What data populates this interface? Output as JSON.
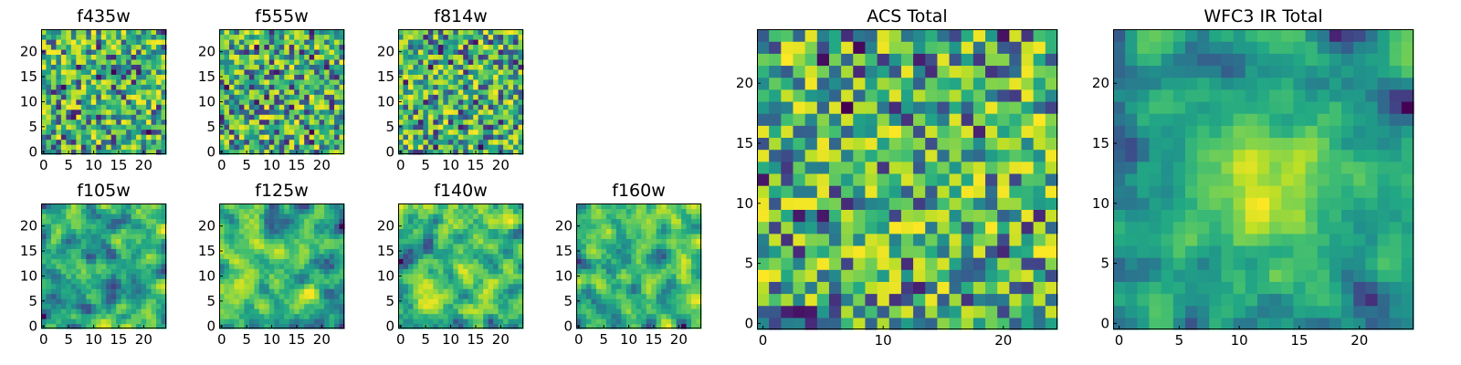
{
  "figure_title": "",
  "chart_data": [
    {
      "type": "heatmap",
      "title": "f435w",
      "nx": 25,
      "ny": 25,
      "seed": 11,
      "smooth": 0,
      "kind": "noise",
      "xlim": [
        0,
        24
      ],
      "ylim": [
        0,
        24
      ],
      "xticks": [
        0,
        5,
        10,
        15,
        20
      ],
      "yticks": [
        0,
        5,
        10,
        15,
        20
      ],
      "colormap": "viridis"
    },
    {
      "type": "heatmap",
      "title": "f555w",
      "nx": 25,
      "ny": 25,
      "seed": 23,
      "smooth": 0,
      "kind": "noise",
      "xlim": [
        0,
        24
      ],
      "ylim": [
        0,
        24
      ],
      "xticks": [
        0,
        5,
        10,
        15,
        20
      ],
      "yticks": [
        0,
        5,
        10,
        15,
        20
      ],
      "colormap": "viridis"
    },
    {
      "type": "heatmap",
      "title": "f814w",
      "nx": 25,
      "ny": 25,
      "seed": 37,
      "smooth": 0,
      "kind": "noise",
      "xlim": [
        0,
        24
      ],
      "ylim": [
        0,
        24
      ],
      "xticks": [
        0,
        5,
        10,
        15,
        20
      ],
      "yticks": [
        0,
        5,
        10,
        15,
        20
      ],
      "colormap": "viridis"
    },
    {
      "type": "heatmap",
      "title": "f105w",
      "nx": 25,
      "ny": 25,
      "seed": 41,
      "smooth": 1,
      "kind": "smooth",
      "xlim": [
        0,
        24
      ],
      "ylim": [
        0,
        24
      ],
      "xticks": [
        0,
        5,
        10,
        15,
        20
      ],
      "yticks": [
        0,
        5,
        10,
        15,
        20
      ],
      "colormap": "viridis"
    },
    {
      "type": "heatmap",
      "title": "f125w",
      "nx": 25,
      "ny": 25,
      "seed": 53,
      "smooth": 1,
      "kind": "smooth",
      "xlim": [
        0,
        24
      ],
      "ylim": [
        0,
        24
      ],
      "xticks": [
        0,
        5,
        10,
        15,
        20
      ],
      "yticks": [
        0,
        5,
        10,
        15,
        20
      ],
      "colormap": "viridis"
    },
    {
      "type": "heatmap",
      "title": "f140w",
      "nx": 25,
      "ny": 25,
      "seed": 67,
      "smooth": 1,
      "kind": "smooth",
      "xlim": [
        0,
        24
      ],
      "ylim": [
        0,
        24
      ],
      "xticks": [
        0,
        5,
        10,
        15,
        20
      ],
      "yticks": [
        0,
        5,
        10,
        15,
        20
      ],
      "colormap": "viridis"
    },
    {
      "type": "heatmap",
      "title": "f160w",
      "nx": 25,
      "ny": 25,
      "seed": 79,
      "smooth": 1,
      "kind": "smooth",
      "xlim": [
        0,
        24
      ],
      "ylim": [
        0,
        24
      ],
      "xticks": [
        0,
        5,
        10,
        15,
        20
      ],
      "yticks": [
        0,
        5,
        10,
        15,
        20
      ],
      "colormap": "viridis"
    },
    {
      "type": "heatmap",
      "title": "ACS Total",
      "nx": 25,
      "ny": 25,
      "seed": 97,
      "smooth": 0,
      "kind": "noise",
      "xlim": [
        0,
        24
      ],
      "ylim": [
        0,
        24
      ],
      "xticks": [
        0,
        10,
        20
      ],
      "yticks": [
        0,
        5,
        10,
        15,
        20
      ],
      "colormap": "viridis"
    },
    {
      "type": "heatmap",
      "title": "WFC3 IR Total",
      "nx": 25,
      "ny": 25,
      "seed": 113,
      "smooth": 1,
      "kind": "smooth-center",
      "xlim": [
        0,
        24
      ],
      "ylim": [
        0,
        24
      ],
      "xticks": [
        0,
        5,
        10,
        15,
        20
      ],
      "yticks": [
        0,
        5,
        10,
        15,
        20
      ],
      "colormap": "viridis"
    }
  ]
}
